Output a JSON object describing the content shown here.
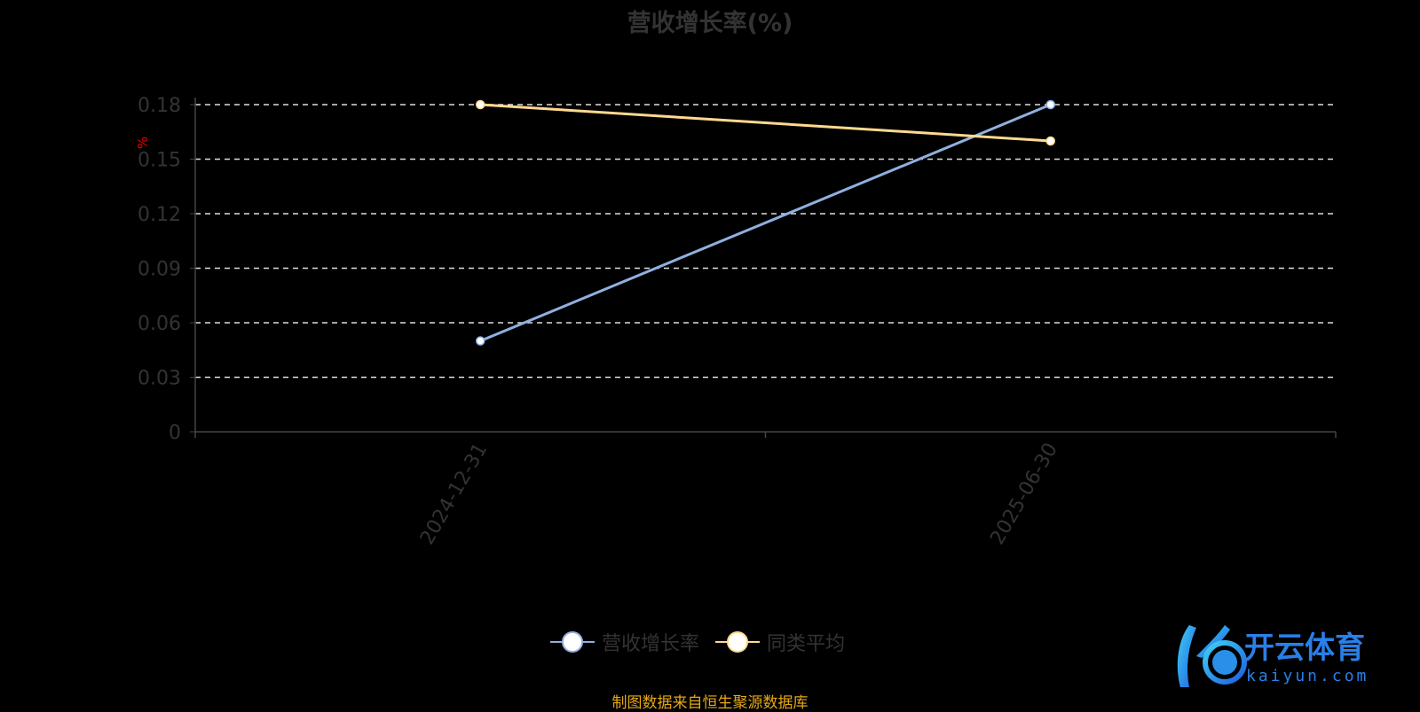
{
  "chart_data": {
    "type": "line",
    "title": "营收增长率(%)",
    "ylabel": "%",
    "categories": [
      "2024-12-31",
      "2025-06-30"
    ],
    "yticks": [
      "0",
      "0.03",
      "0.06",
      "0.09",
      "0.12",
      "0.15",
      "0.18"
    ],
    "ylim": [
      0,
      0.18
    ],
    "grid": true,
    "legend_position": "bottom",
    "series": [
      {
        "name": "营收增长率",
        "values": [
          0.05,
          0.18
        ],
        "color": "#8fb0e0"
      },
      {
        "name": "同类平均",
        "values": [
          0.18,
          0.16
        ],
        "color": "#ffd98e"
      }
    ]
  },
  "source_note": "制图数据来自恒生聚源数据库",
  "watermark": {
    "text_cn": "开云体育",
    "text_en": "kaiyun.com"
  }
}
